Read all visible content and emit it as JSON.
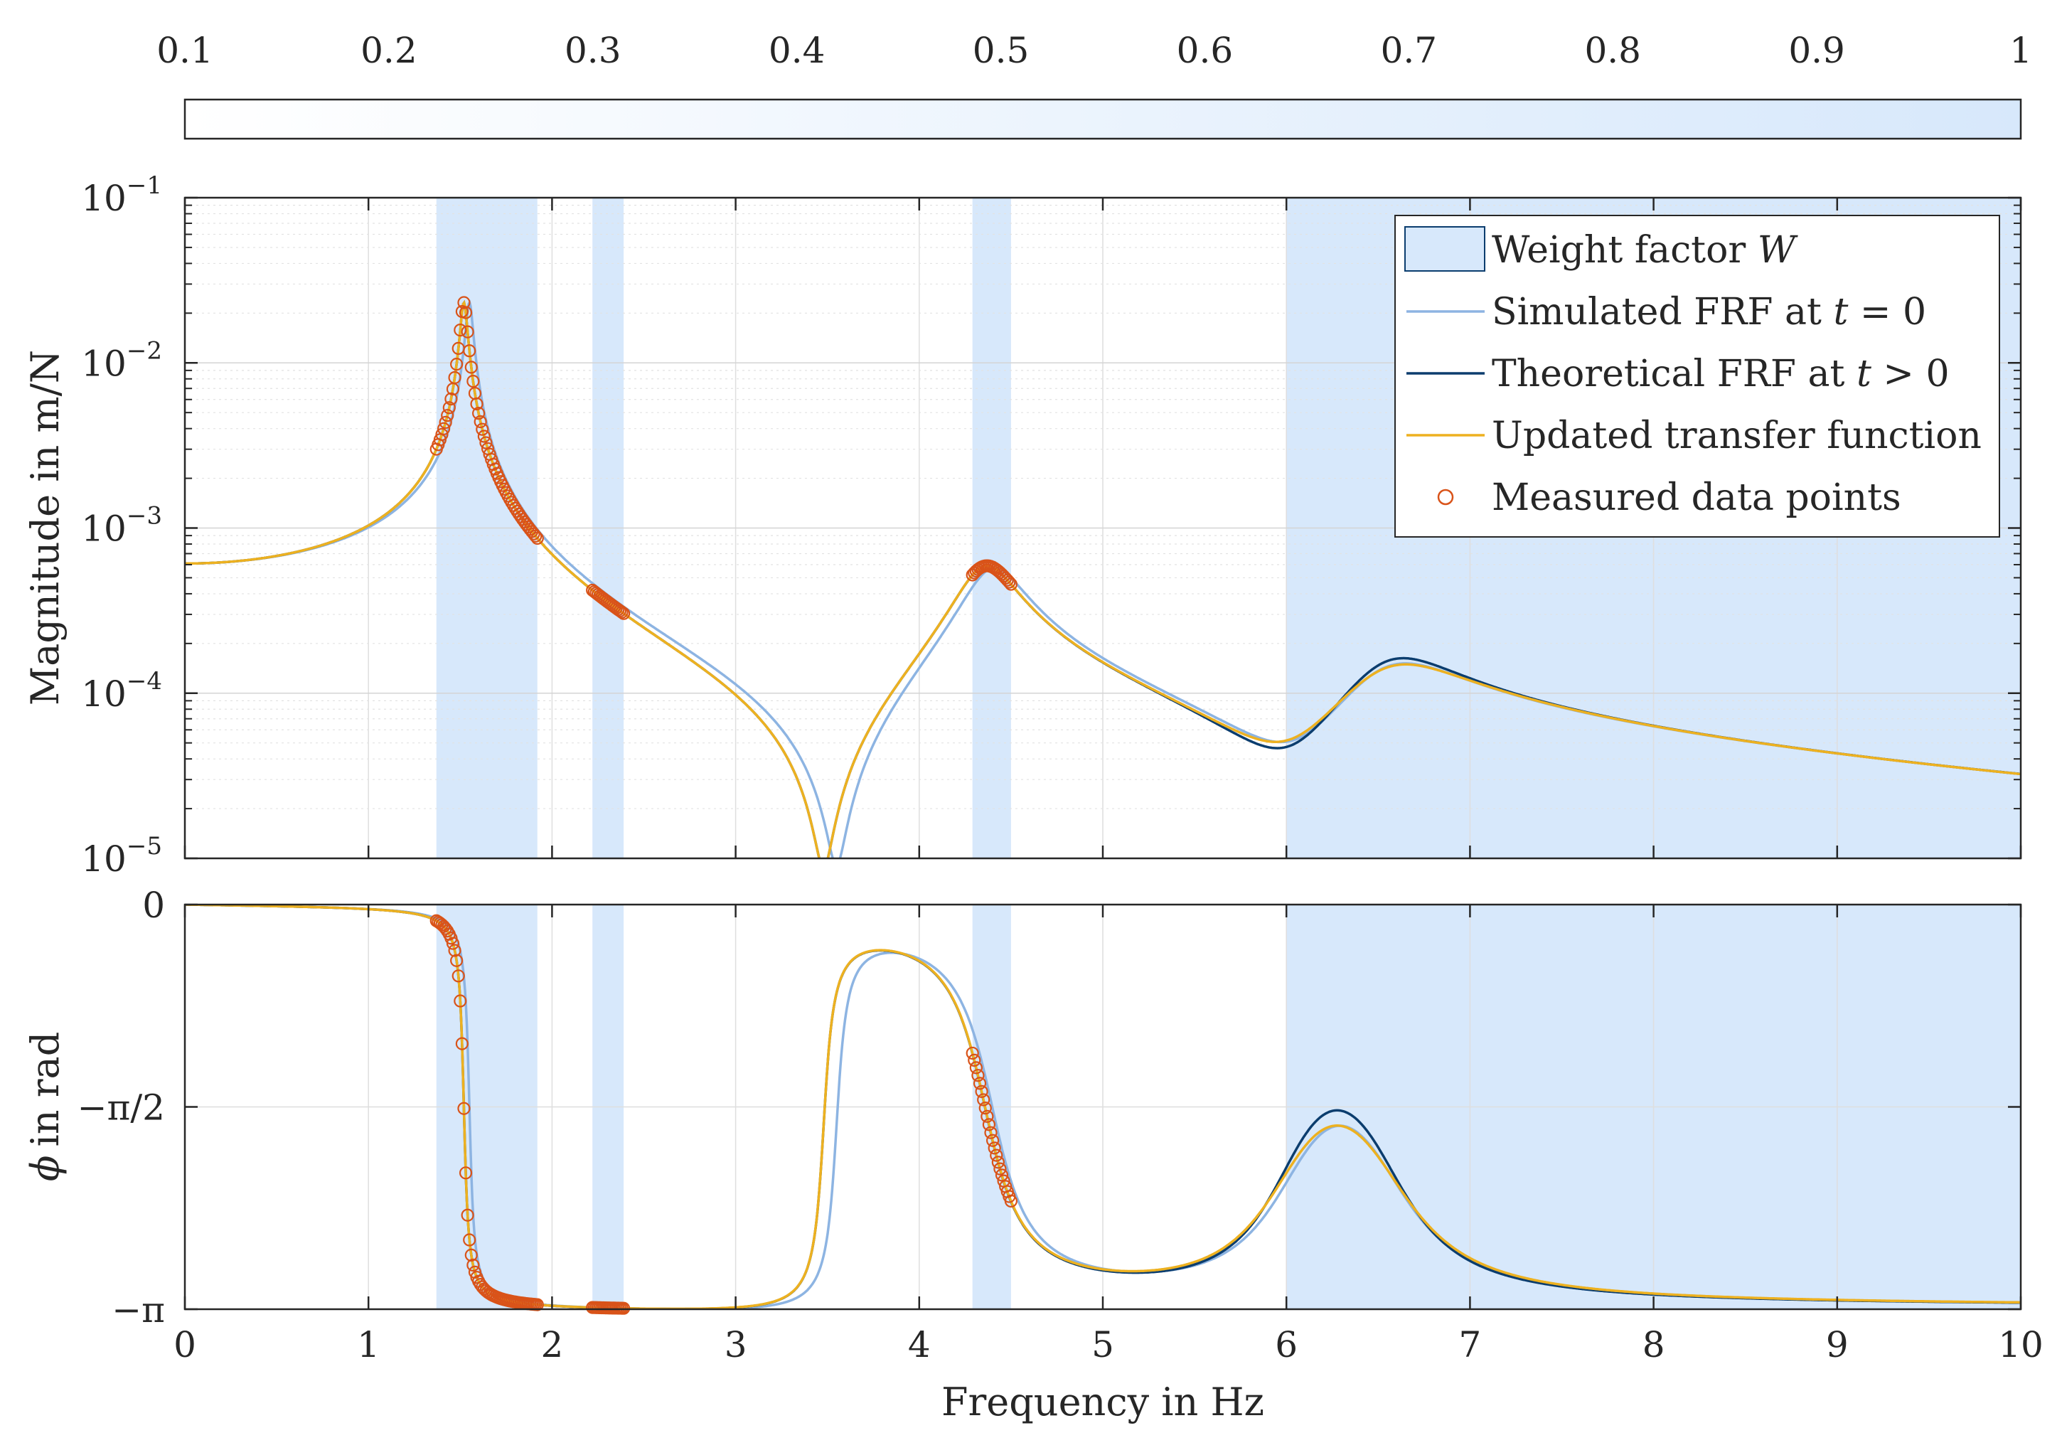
{
  "chart_data": {
    "type": "line",
    "colorbar": {
      "ticks": [
        "0.1",
        "0.2",
        "0.3",
        "0.4",
        "0.5",
        "0.6",
        "0.7",
        "0.8",
        "0.9",
        "1"
      ],
      "range": [
        0.1,
        1
      ],
      "color_low": "#ffffff",
      "color_high": "#d7e8fb"
    },
    "weight_bands": [
      {
        "x0": 1.37,
        "x1": 1.92
      },
      {
        "x0": 2.22,
        "x1": 2.39
      },
      {
        "x0": 4.29,
        "x1": 4.5
      },
      {
        "x0": 6.0,
        "x1": 10.0
      }
    ],
    "magnitude": {
      "ylabel": "Magnitude in m/N",
      "yscale": "log",
      "ylim": [
        1e-05,
        0.1
      ],
      "ytick_labels": [
        {
          "base": "10",
          "exp": "−5"
        },
        {
          "base": "10",
          "exp": "−4"
        },
        {
          "base": "10",
          "exp": "−3"
        },
        {
          "base": "10",
          "exp": "−2"
        },
        {
          "base": "10",
          "exp": "−1"
        }
      ]
    },
    "phase": {
      "ylabel": "in rad",
      "ylabel_symbol": "ϕ",
      "ylim": [
        -3.14159,
        0
      ],
      "ytick_labels": [
        "−π",
        "−π/2",
        "0"
      ]
    },
    "x": {
      "xlabel": "Frequency in Hz",
      "xlim": [
        0,
        10
      ],
      "tick_labels": [
        "0",
        "1",
        "2",
        "3",
        "4",
        "5",
        "6",
        "7",
        "8",
        "9",
        "10"
      ]
    },
    "series": [
      {
        "name": "Simulated FRF at t = 0",
        "color": "#8db4e2",
        "model": {
          "f1": 1.55,
          "z1": 0.012,
          "f2": 4.4,
          "z2": 0.035,
          "fa": 3.55,
          "za": 0.012,
          "f3": 6.55,
          "z3": 0.05,
          "fb": 6.05,
          "zb": 0.05,
          "kmag": 0.00061
        }
      },
      {
        "name": "Theoretical FRF at t > 0",
        "color": "#0b3d6e",
        "model": {
          "f1": 1.52,
          "z1": 0.012,
          "f2": 4.36,
          "z2": 0.035,
          "fa": 3.48,
          "za": 0.012,
          "f3": 6.55,
          "z3": 0.047,
          "fb": 6.02,
          "zb": 0.047,
          "kmag": 0.00061
        }
      },
      {
        "name": "Updated transfer function",
        "color": "#edb120",
        "model": {
          "f1": 1.52,
          "z1": 0.012,
          "f2": 4.36,
          "z2": 0.035,
          "fa": 3.48,
          "za": 0.012,
          "f3": 6.55,
          "z3": 0.053,
          "fb": 6.02,
          "zb": 0.053,
          "kmag": 0.00061
        }
      }
    ],
    "measured": {
      "name": "Measured data points",
      "color": "#d95319",
      "ranges": [
        {
          "x0": 1.37,
          "x1": 1.92
        },
        {
          "x0": 2.22,
          "x1": 2.39
        },
        {
          "x0": 4.29,
          "x1": 4.5
        }
      ]
    },
    "legend": {
      "position": "top-right",
      "entries": [
        {
          "pre": "Weight factor ",
          "ital": "W",
          "post": ""
        },
        {
          "pre": "Simulated FRF at  ",
          "ital": "t",
          "post": " = 0"
        },
        {
          "pre": "Theoretical FRF at  ",
          "ital": "t",
          "post": " > 0"
        },
        {
          "pre": "Updated transfer function",
          "ital": "",
          "post": ""
        },
        {
          "pre": "Measured data points",
          "ital": "",
          "post": ""
        }
      ]
    }
  }
}
